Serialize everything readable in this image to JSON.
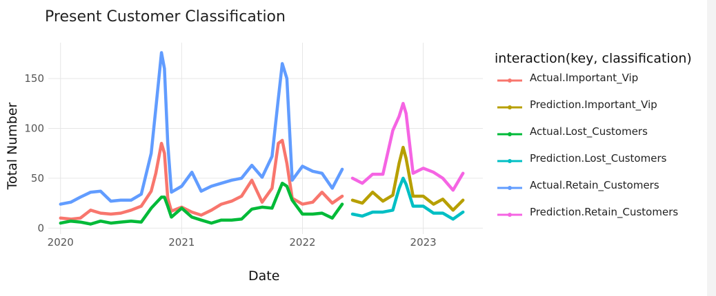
{
  "chart_data": {
    "type": "line",
    "title": "Present Customer Classification",
    "xlabel": "Date",
    "ylabel": "Total Number",
    "xlim": [
      "2019-11-25",
      "2023-06-30"
    ],
    "ylim": [
      -6,
      186
    ],
    "x_ticks": [
      "2020-01-01",
      "2021-01-01",
      "2022-01-01",
      "2023-01-01"
    ],
    "x_tick_labels": [
      "2020",
      "2021",
      "2022",
      "2023"
    ],
    "y_ticks": [
      0,
      50,
      100,
      150
    ],
    "y_tick_labels": [
      "0",
      "50",
      "100",
      "150"
    ],
    "grid": true,
    "legend": {
      "title": "interaction(key, classification)",
      "position": "right"
    },
    "series": [
      {
        "name": "Actual.Important_Vip",
        "color": "#F8766D",
        "points": [
          [
            "2020-01-01",
            10
          ],
          [
            "2020-02-01",
            9
          ],
          [
            "2020-03-01",
            10
          ],
          [
            "2020-04-01",
            18
          ],
          [
            "2020-05-01",
            15
          ],
          [
            "2020-06-01",
            14
          ],
          [
            "2020-07-01",
            15
          ],
          [
            "2020-08-01",
            18
          ],
          [
            "2020-09-01",
            22
          ],
          [
            "2020-10-01",
            37
          ],
          [
            "2020-10-15",
            55
          ],
          [
            "2020-11-01",
            85
          ],
          [
            "2020-11-10",
            75
          ],
          [
            "2020-11-20",
            30
          ],
          [
            "2020-12-01",
            17
          ],
          [
            "2021-01-01",
            21
          ],
          [
            "2021-02-01",
            16
          ],
          [
            "2021-03-01",
            13
          ],
          [
            "2021-04-01",
            18
          ],
          [
            "2021-05-01",
            24
          ],
          [
            "2021-06-01",
            27
          ],
          [
            "2021-07-01",
            32
          ],
          [
            "2021-08-01",
            48
          ],
          [
            "2021-09-01",
            26
          ],
          [
            "2021-10-01",
            40
          ],
          [
            "2021-10-20",
            85
          ],
          [
            "2021-11-01",
            88
          ],
          [
            "2021-11-15",
            65
          ],
          [
            "2021-12-01",
            30
          ],
          [
            "2022-01-01",
            24
          ],
          [
            "2022-02-01",
            26
          ],
          [
            "2022-03-01",
            36
          ],
          [
            "2022-04-01",
            25
          ],
          [
            "2022-05-01",
            32
          ]
        ]
      },
      {
        "name": "Prediction.Important_Vip",
        "color": "#B79F00",
        "points": [
          [
            "2022-06-01",
            28
          ],
          [
            "2022-07-01",
            25
          ],
          [
            "2022-08-01",
            36
          ],
          [
            "2022-09-01",
            27
          ],
          [
            "2022-10-01",
            33
          ],
          [
            "2022-10-20",
            65
          ],
          [
            "2022-11-01",
            81
          ],
          [
            "2022-11-10",
            70
          ],
          [
            "2022-12-01",
            32
          ],
          [
            "2023-01-01",
            32
          ],
          [
            "2023-02-01",
            24
          ],
          [
            "2023-03-01",
            29
          ],
          [
            "2023-04-01",
            18
          ],
          [
            "2023-05-01",
            28
          ]
        ]
      },
      {
        "name": "Actual.Lost_Customers",
        "color": "#00BA38",
        "points": [
          [
            "2020-01-01",
            5
          ],
          [
            "2020-02-01",
            7
          ],
          [
            "2020-03-01",
            6
          ],
          [
            "2020-04-01",
            4
          ],
          [
            "2020-05-01",
            7
          ],
          [
            "2020-06-01",
            5
          ],
          [
            "2020-07-01",
            6
          ],
          [
            "2020-08-01",
            7
          ],
          [
            "2020-09-01",
            6
          ],
          [
            "2020-10-01",
            20
          ],
          [
            "2020-11-01",
            31
          ],
          [
            "2020-11-10",
            31
          ],
          [
            "2020-11-20",
            22
          ],
          [
            "2020-12-01",
            11
          ],
          [
            "2021-01-01",
            20
          ],
          [
            "2021-02-01",
            11
          ],
          [
            "2021-03-01",
            8
          ],
          [
            "2021-04-01",
            5
          ],
          [
            "2021-05-01",
            8
          ],
          [
            "2021-06-01",
            8
          ],
          [
            "2021-07-01",
            9
          ],
          [
            "2021-08-01",
            19
          ],
          [
            "2021-09-01",
            21
          ],
          [
            "2021-10-01",
            20
          ],
          [
            "2021-11-01",
            45
          ],
          [
            "2021-11-15",
            42
          ],
          [
            "2021-12-01",
            28
          ],
          [
            "2022-01-01",
            14
          ],
          [
            "2022-02-01",
            14
          ],
          [
            "2022-03-01",
            15
          ],
          [
            "2022-04-01",
            10
          ],
          [
            "2022-05-01",
            24
          ]
        ]
      },
      {
        "name": "Prediction.Lost_Customers",
        "color": "#00BFC4",
        "points": [
          [
            "2022-06-01",
            14
          ],
          [
            "2022-07-01",
            12
          ],
          [
            "2022-08-01",
            16
          ],
          [
            "2022-09-01",
            16
          ],
          [
            "2022-10-01",
            18
          ],
          [
            "2022-10-20",
            40
          ],
          [
            "2022-11-01",
            50
          ],
          [
            "2022-11-10",
            44
          ],
          [
            "2022-12-01",
            22
          ],
          [
            "2023-01-01",
            22
          ],
          [
            "2023-02-01",
            15
          ],
          [
            "2023-03-01",
            15
          ],
          [
            "2023-04-01",
            9
          ],
          [
            "2023-05-01",
            16
          ]
        ]
      },
      {
        "name": "Actual.Retain_Customers",
        "color": "#619CFF",
        "points": [
          [
            "2020-01-01",
            24
          ],
          [
            "2020-02-01",
            26
          ],
          [
            "2020-03-01",
            31
          ],
          [
            "2020-04-01",
            36
          ],
          [
            "2020-05-01",
            37
          ],
          [
            "2020-06-01",
            27
          ],
          [
            "2020-07-01",
            28
          ],
          [
            "2020-08-01",
            28
          ],
          [
            "2020-09-01",
            34
          ],
          [
            "2020-10-01",
            75
          ],
          [
            "2020-10-15",
            120
          ],
          [
            "2020-11-01",
            176
          ],
          [
            "2020-11-10",
            160
          ],
          [
            "2020-11-20",
            85
          ],
          [
            "2020-12-01",
            36
          ],
          [
            "2021-01-01",
            42
          ],
          [
            "2021-02-01",
            56
          ],
          [
            "2021-03-01",
            37
          ],
          [
            "2021-04-01",
            42
          ],
          [
            "2021-05-01",
            45
          ],
          [
            "2021-06-01",
            48
          ],
          [
            "2021-07-01",
            50
          ],
          [
            "2021-08-01",
            63
          ],
          [
            "2021-09-01",
            51
          ],
          [
            "2021-10-01",
            72
          ],
          [
            "2021-10-20",
            130
          ],
          [
            "2021-11-01",
            165
          ],
          [
            "2021-11-15",
            150
          ],
          [
            "2021-12-01",
            48
          ],
          [
            "2022-01-01",
            62
          ],
          [
            "2022-02-01",
            57
          ],
          [
            "2022-03-01",
            55
          ],
          [
            "2022-04-01",
            40
          ],
          [
            "2022-05-01",
            59
          ]
        ]
      },
      {
        "name": "Prediction.Retain_Customers",
        "color": "#F564E3",
        "points": [
          [
            "2022-06-01",
            50
          ],
          [
            "2022-07-01",
            45
          ],
          [
            "2022-08-01",
            54
          ],
          [
            "2022-09-01",
            54
          ],
          [
            "2022-10-01",
            98
          ],
          [
            "2022-10-20",
            112
          ],
          [
            "2022-11-01",
            125
          ],
          [
            "2022-11-10",
            115
          ],
          [
            "2022-12-01",
            55
          ],
          [
            "2023-01-01",
            60
          ],
          [
            "2023-02-01",
            56
          ],
          [
            "2023-03-01",
            50
          ],
          [
            "2023-04-01",
            38
          ],
          [
            "2023-05-01",
            55
          ]
        ]
      }
    ]
  }
}
